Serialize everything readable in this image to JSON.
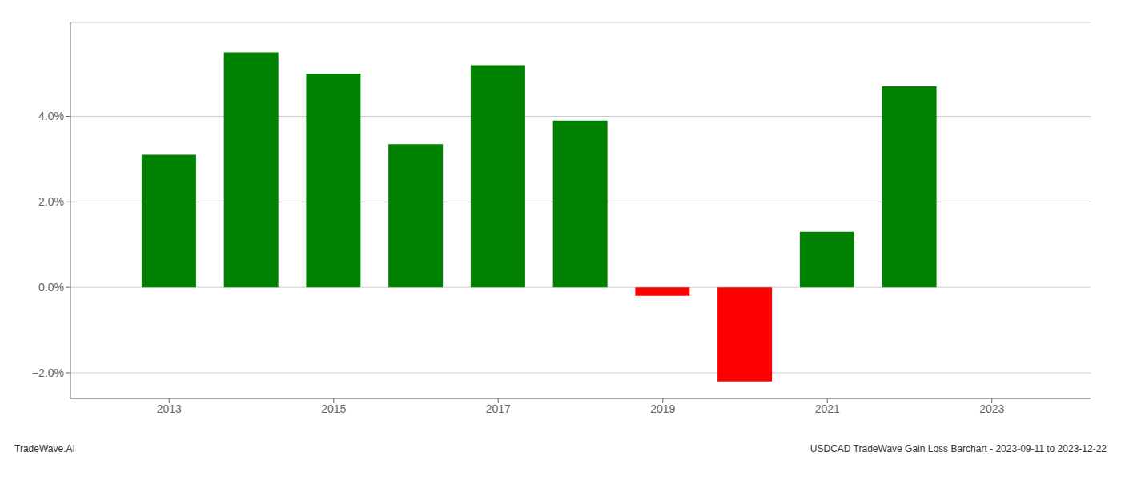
{
  "chart_data": {
    "type": "bar",
    "x": [
      2013,
      2014,
      2015,
      2016,
      2017,
      2018,
      2019,
      2020,
      2021,
      2022
    ],
    "values": [
      0.031,
      0.055,
      0.05,
      0.0335,
      0.052,
      0.039,
      -0.002,
      -0.022,
      0.013,
      0.047
    ],
    "colors": [
      "#008000",
      "#008000",
      "#008000",
      "#008000",
      "#008000",
      "#008000",
      "#ff0000",
      "#ff0000",
      "#008000",
      "#008000"
    ],
    "xlim": [
      2011.8,
      2024.2
    ],
    "xticks": [
      2013,
      2015,
      2017,
      2019,
      2021,
      2023
    ],
    "ylim": [
      -0.026,
      0.062
    ],
    "yticks": [
      {
        "value": -0.02,
        "label": "−2.0%"
      },
      {
        "value": 0,
        "label": "0.0%"
      },
      {
        "value": 0.02,
        "label": "2.0%"
      },
      {
        "value": 0.04,
        "label": "4.0%"
      }
    ],
    "grid": true,
    "annotations": [
      "TradeWave.AI",
      "USDCAD TradeWave Gain Loss Barchart - 2023-09-11 to 2023-12-22"
    ]
  }
}
